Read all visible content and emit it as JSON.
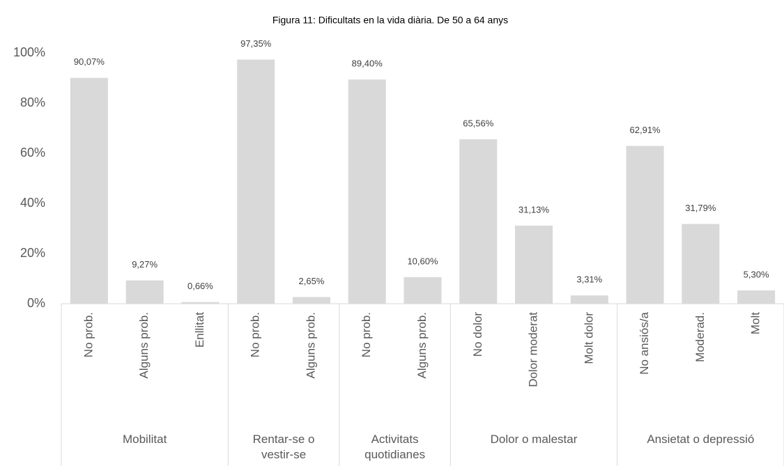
{
  "chart_data": {
    "type": "bar",
    "title": "Figura 11: Dificultats en la vida diària. De 50 a 64 anys",
    "color": "#d9d9d9",
    "grid": false,
    "ylim": [
      0,
      100
    ],
    "yticks": [
      {
        "value": 0,
        "label": "0%"
      },
      {
        "value": 20,
        "label": "20%"
      },
      {
        "value": 40,
        "label": "40%"
      },
      {
        "value": 60,
        "label": "60%"
      },
      {
        "value": 80,
        "label": "80%"
      },
      {
        "value": 100,
        "label": "100%"
      }
    ],
    "groups": [
      {
        "name": "Mobilitat",
        "categories": [
          "No prob.",
          "Alguns prob.",
          "Enllitat"
        ],
        "values": [
          90.07,
          9.27,
          0.66
        ],
        "value_labels": [
          "90,07%",
          "9,27%",
          "0,66%"
        ]
      },
      {
        "name": "Rentar-se o vestir-se",
        "categories": [
          "No prob.",
          "Alguns prob."
        ],
        "values": [
          97.35,
          2.65
        ],
        "value_labels": [
          "97,35%",
          "2,65%"
        ]
      },
      {
        "name": "Activitats quotidianes",
        "categories": [
          "No prob.",
          "Alguns prob."
        ],
        "values": [
          89.4,
          10.6
        ],
        "value_labels": [
          "89,40%",
          "10,60%"
        ]
      },
      {
        "name": "Dolor o malestar",
        "categories": [
          "No dolor",
          "Dolor moderat",
          "Molt dolor"
        ],
        "values": [
          65.56,
          31.13,
          3.31
        ],
        "value_labels": [
          "65,56%",
          "31,13%",
          "3,31%"
        ]
      },
      {
        "name": "Ansietat o depressió",
        "categories": [
          "No ansiós/a",
          "Moderad.",
          "Molt"
        ],
        "values": [
          62.91,
          31.79,
          5.3
        ],
        "value_labels": [
          "62,91%",
          "31,79%",
          "5,30%"
        ]
      }
    ]
  }
}
